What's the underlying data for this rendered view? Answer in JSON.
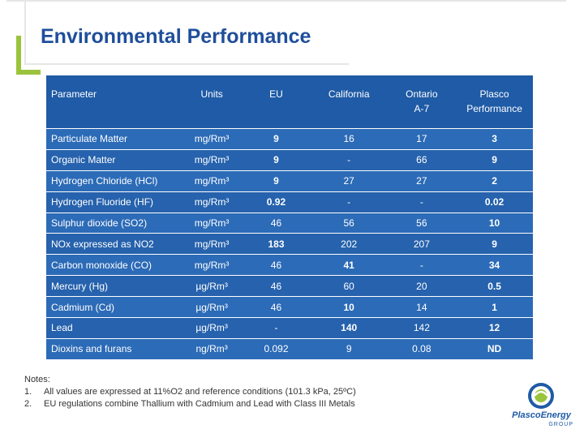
{
  "title": "Environmental Performance",
  "table": {
    "headers": [
      "Parameter",
      "Units",
      "EU",
      "California",
      "Ontario A-7",
      "Plasco Performance"
    ],
    "rows": [
      {
        "param": "Particulate Matter",
        "unit": "mg/Rm³",
        "eu": "9",
        "ca": "16",
        "on": "17",
        "plasco": "3"
      },
      {
        "param": "Organic Matter",
        "unit": "mg/Rm³",
        "eu": "9",
        "ca": "-",
        "on": "66",
        "plasco": "9"
      },
      {
        "param": "Hydrogen Chloride (HCl)",
        "unit": "mg/Rm³",
        "eu": "9",
        "ca": "27",
        "on": "27",
        "plasco": "2"
      },
      {
        "param": "Hydrogen Fluoride (HF)",
        "unit": "mg/Rm³",
        "eu": "0.92",
        "ca": "-",
        "on": "-",
        "plasco": "0.02"
      },
      {
        "param": "Sulphur dioxide (SO2)",
        "unit": "mg/Rm³",
        "eu": "46",
        "ca": "56",
        "on": "56",
        "plasco": "10"
      },
      {
        "param": "NOx expressed as NO2",
        "unit": "mg/Rm³",
        "eu": "183",
        "ca": "202",
        "on": "207",
        "plasco": "9"
      },
      {
        "param": "Carbon monoxide (CO)",
        "unit": "mg/Rm³",
        "eu": "46",
        "ca": "41",
        "on": "-",
        "plasco": "34"
      },
      {
        "param": "Mercury (Hg)",
        "unit": "µg/Rm³",
        "eu": "46",
        "ca": "60",
        "on": "20",
        "plasco": "0.5"
      },
      {
        "param": "Cadmium (Cd)",
        "unit": "µg/Rm³",
        "eu": "46",
        "ca": "10",
        "on": "14",
        "plasco": "1"
      },
      {
        "param": "Lead",
        "unit": "µg/Rm³",
        "eu": "-",
        "ca": "140",
        "on": "142",
        "plasco": "12"
      },
      {
        "param": "Dioxins and furans",
        "unit": "ng/Rm³",
        "eu": "0.092",
        "ca": "9",
        "on": "0.08",
        "plasco": "ND"
      }
    ]
  },
  "notes": {
    "heading": "Notes:",
    "items": [
      {
        "num": "1.",
        "text": "All values are expressed at 11%O2 and reference conditions (101.3 kPa, 25ºC)"
      },
      {
        "num": "2.",
        "text": "EU regulations combine Thallium with Cadmium and Lead with Class III Metals"
      }
    ]
  },
  "logo": {
    "name": "PlascoEnergy",
    "sub": "GROUP"
  },
  "colors": {
    "title": "#1f4e9b",
    "header_bg": "#1f5ba6",
    "row_bg": "#2c6bb7",
    "accent_green": "#9bc43c"
  }
}
